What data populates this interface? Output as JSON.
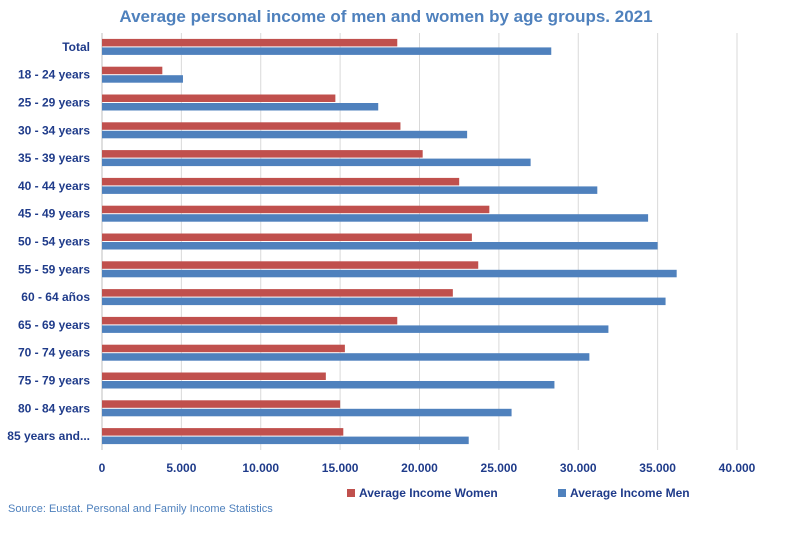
{
  "chart_data": {
    "type": "bar",
    "orientation": "horizontal",
    "title": "Average personal income of men and women by age groups. 2021",
    "categories": [
      "Total",
      "18 - 24 years",
      "25 - 29 years",
      "30 - 34 years",
      "35 - 39 years",
      "40 - 44 years",
      "45 - 49 years",
      "50 - 54 years",
      "55 - 59 years",
      "60 - 64 años",
      "65 - 69 years",
      "70 - 74 years",
      "75 - 79 years",
      "80 - 84 years",
      "85 years and..."
    ],
    "series": [
      {
        "name": "Average Income Women",
        "color": "#c0504d",
        "values": [
          18600,
          3800,
          14700,
          18800,
          20200,
          22500,
          24400,
          23300,
          23700,
          22100,
          18600,
          15300,
          14100,
          15000,
          15200
        ]
      },
      {
        "name": "Average Income Men",
        "color": "#4f81bd",
        "values": [
          28300,
          5100,
          17400,
          23000,
          27000,
          31200,
          34400,
          35000,
          36200,
          35500,
          31900,
          30700,
          28500,
          25800,
          23100
        ]
      }
    ],
    "xlim": [
      0,
      40000
    ],
    "xticks": [
      0,
      5000,
      10000,
      15000,
      20000,
      25000,
      30000,
      35000,
      40000
    ],
    "xtick_labels": [
      "0",
      "5.000",
      "10.000",
      "15.000",
      "20.000",
      "25.000",
      "30.000",
      "35.000",
      "40.000"
    ],
    "xlabel": "",
    "ylabel": "",
    "grid": true,
    "legend_position": "bottom"
  },
  "colors": {
    "title": "#4f81bd",
    "labels": "#1f3b8a",
    "grid": "#d9d9d9",
    "source": "#4f81bd"
  },
  "source": "Source: Eustat. Personal and Family Income Statistics"
}
